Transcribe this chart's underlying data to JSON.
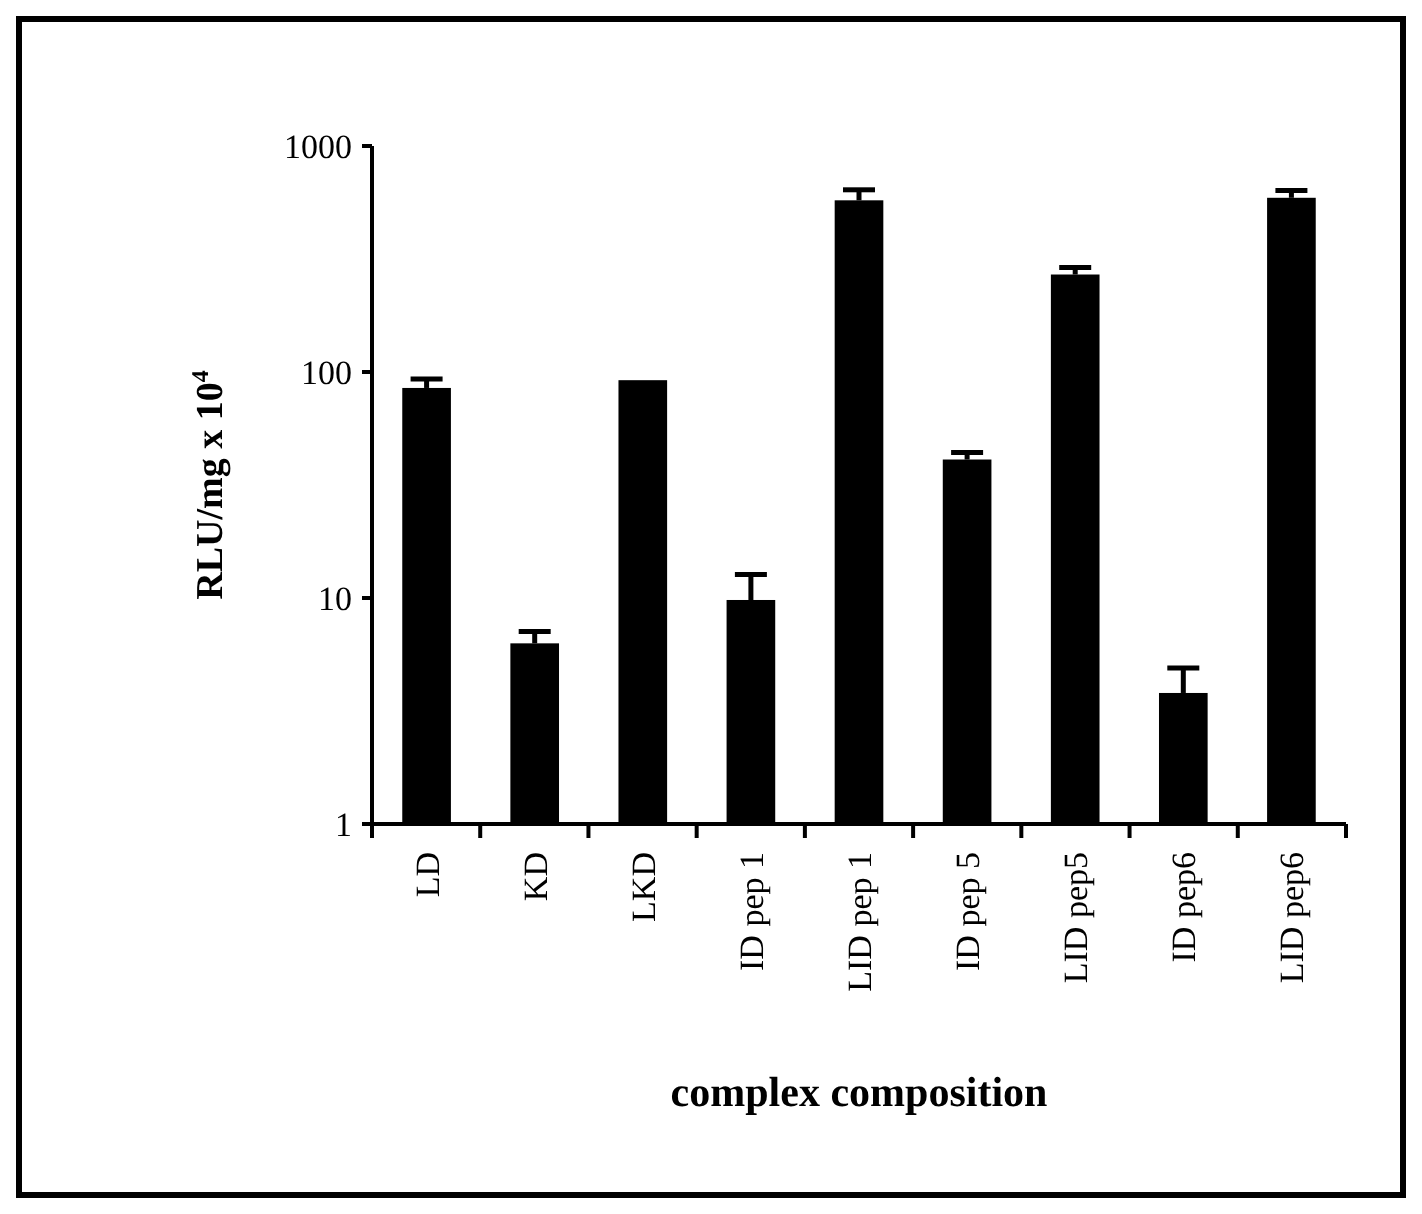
{
  "chart_data": {
    "type": "bar",
    "xlabel": "complex composition",
    "ylabel": "RLU/mg x 10$^{4}$",
    "categories": [
      "LD",
      "KD",
      "LKD",
      "ID pep 1",
      "LID pep 1",
      "ID pep 5",
      "LID pep5",
      "ID pep6",
      "LID pep6"
    ],
    "values": [
      85,
      6.3,
      92,
      9.8,
      575,
      41,
      270,
      3.8,
      590
    ],
    "errors": [
      [
        85,
        93
      ],
      [
        6.3,
        7.1
      ],
      null,
      [
        9.8,
        12.7
      ],
      [
        575,
        640
      ],
      [
        41,
        44
      ],
      [
        270,
        290
      ],
      [
        3.8,
        4.9
      ],
      [
        590,
        635
      ]
    ],
    "color": "#000000",
    "log": true,
    "ylim": [
      1,
      1000
    ],
    "yticks": [
      1,
      10,
      100,
      1000
    ],
    "grid": false
  }
}
